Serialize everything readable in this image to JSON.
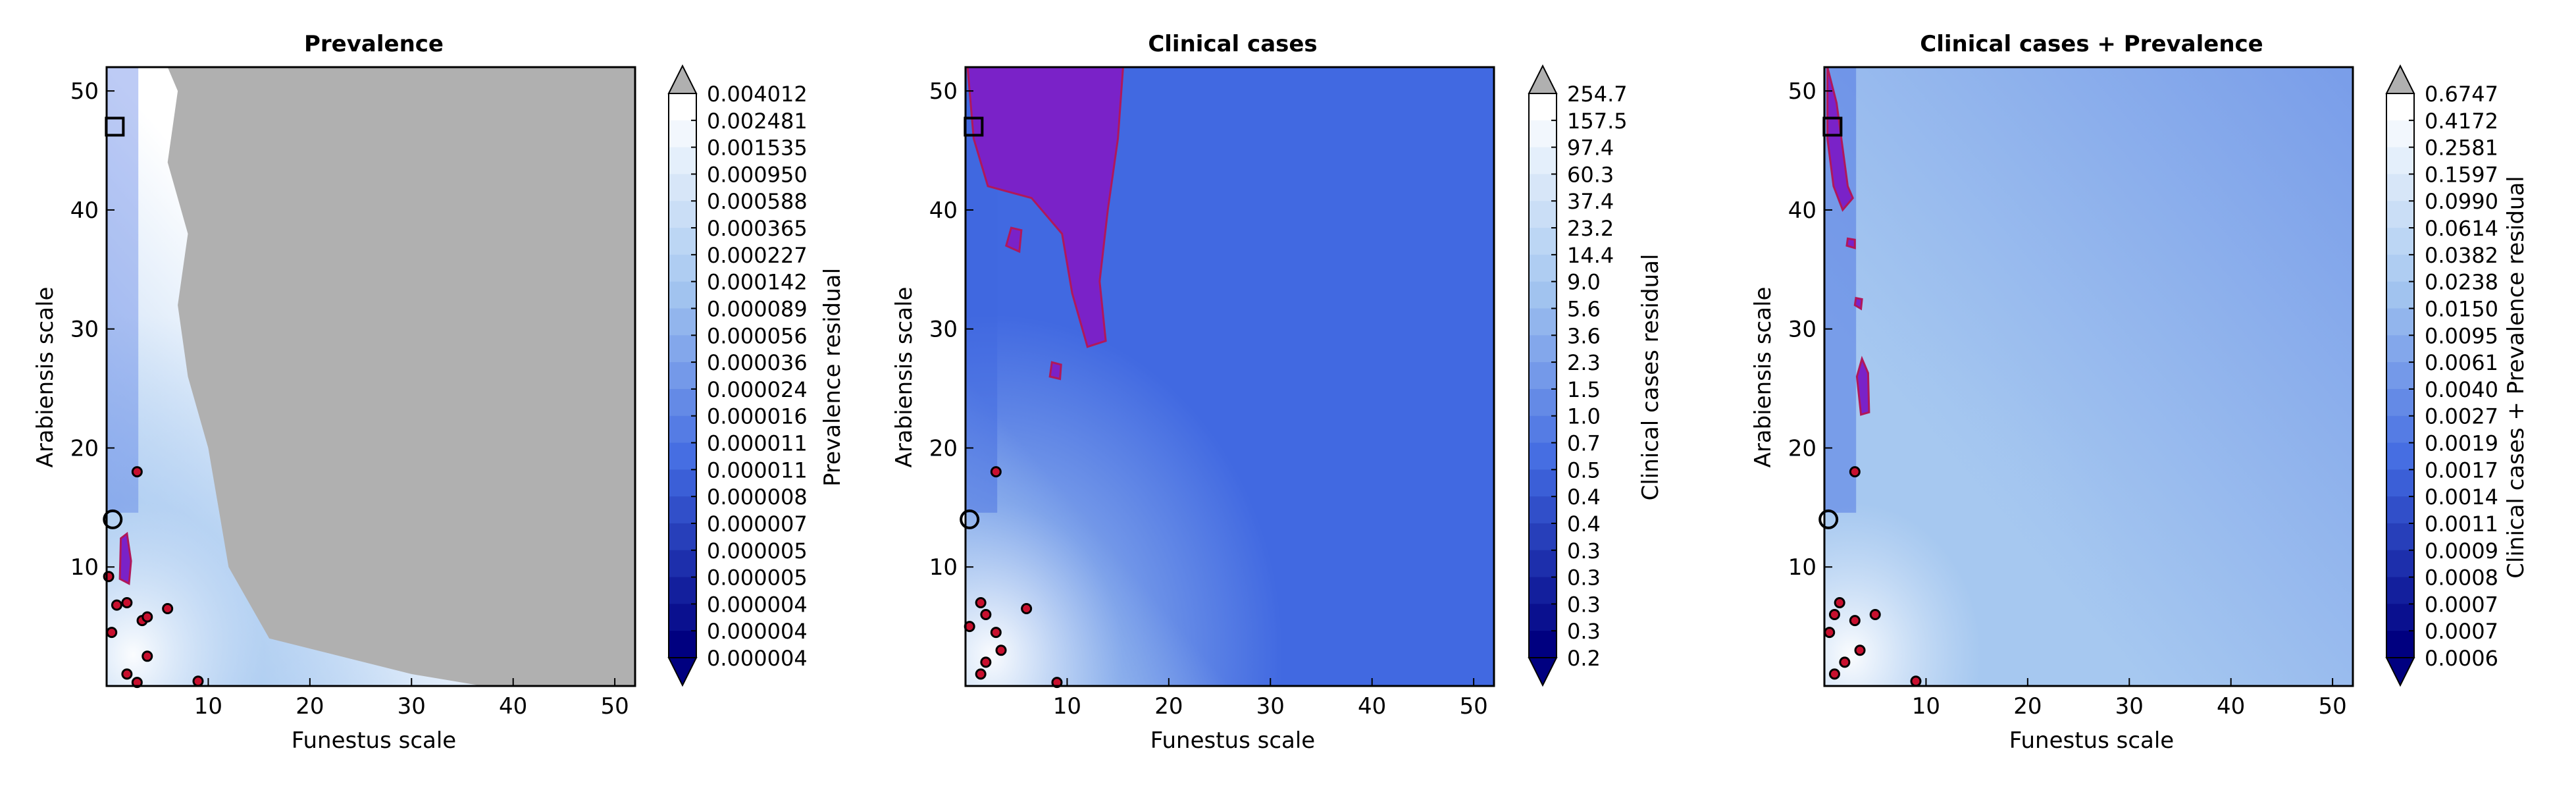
{
  "colors": {
    "contour_dark": "#000080",
    "contour_mid": "#4169e1",
    "contour_light": "#a6c8f0",
    "contour_white": "#ffffff",
    "over_gray": "#b0b0b0",
    "highlight_purple": "#7a22c8",
    "highlight_edge": "#b0185a",
    "marker_red": "#c8102e"
  },
  "chart_data": [
    {
      "type": "heatmap",
      "title": "Prevalence",
      "xlabel": "Funestus scale",
      "ylabel": "Arabiensis scale",
      "xlim": [
        0,
        52
      ],
      "ylim": [
        0,
        52
      ],
      "xticks": [
        "10",
        "20",
        "30",
        "40",
        "50"
      ],
      "yticks": [
        "10",
        "20",
        "30",
        "40",
        "50"
      ],
      "grid": false,
      "colorbar": {
        "label": "Prevalence residual",
        "extend": "both",
        "ticks": [
          "0.000004",
          "0.000004",
          "0.000004",
          "0.000005",
          "0.000005",
          "0.000007",
          "0.000008",
          "0.000011",
          "0.000011",
          "0.000016",
          "0.000024",
          "0.000036",
          "0.000056",
          "0.000089",
          "0.000142",
          "0.000227",
          "0.000365",
          "0.000588",
          "0.000950",
          "0.001535",
          "0.002481",
          "0.004012"
        ]
      },
      "gray_region_boundary": [
        [
          52,
          0
        ],
        [
          37,
          0
        ],
        [
          30,
          1
        ],
        [
          16,
          4
        ],
        [
          12,
          10
        ],
        [
          11,
          15
        ],
        [
          10,
          20
        ],
        [
          8,
          26
        ],
        [
          7,
          32
        ],
        [
          8,
          38
        ],
        [
          6,
          44
        ],
        [
          7,
          50
        ],
        [
          6,
          52
        ],
        [
          52,
          52
        ]
      ],
      "highlight_regions": [
        [
          [
            1.3,
            9
          ],
          [
            2.2,
            8.6
          ],
          [
            2.4,
            10.5
          ],
          [
            2.0,
            12.8
          ],
          [
            1.4,
            12.4
          ]
        ]
      ],
      "square_marker": [
        0.8,
        47
      ],
      "circle_marker": [
        0.6,
        14
      ],
      "red_points": [
        [
          3,
          18
        ],
        [
          2,
          7
        ],
        [
          1,
          6.8
        ],
        [
          3.5,
          5.5
        ],
        [
          4,
          5.8
        ],
        [
          6,
          6.5
        ],
        [
          4,
          2.5
        ],
        [
          2,
          1
        ],
        [
          3,
          0.3
        ],
        [
          9,
          0.4
        ],
        [
          0.5,
          4.5
        ],
        [
          0.2,
          9.2
        ]
      ]
    },
    {
      "type": "heatmap",
      "title": "Clinical cases",
      "xlabel": "Funestus scale",
      "ylabel": "Arabiensis scale",
      "xlim": [
        0,
        52
      ],
      "ylim": [
        0,
        52
      ],
      "xticks": [
        "10",
        "20",
        "30",
        "40",
        "50"
      ],
      "yticks": [
        "10",
        "20",
        "30",
        "40",
        "50"
      ],
      "grid": false,
      "colorbar": {
        "label": "Clinical cases residual",
        "extend": "both",
        "ticks": [
          "0.2",
          "0.3",
          "0.3",
          "0.3",
          "0.3",
          "0.4",
          "0.4",
          "0.5",
          "0.7",
          "1.0",
          "1.5",
          "2.3",
          "3.6",
          "5.6",
          "9.0",
          "14.4",
          "23.2",
          "37.4",
          "60.3",
          "97.4",
          "157.5",
          "254.7"
        ]
      },
      "highlight_regions": [
        [
          [
            0.2,
            52
          ],
          [
            15.5,
            52
          ],
          [
            15,
            46
          ],
          [
            14,
            40
          ],
          [
            13.2,
            34
          ],
          [
            13.8,
            29
          ],
          [
            12,
            28.5
          ],
          [
            10.5,
            33
          ],
          [
            9.5,
            38
          ],
          [
            6.5,
            41
          ],
          [
            2.2,
            42
          ],
          [
            0.8,
            46
          ]
        ],
        [
          [
            8.3,
            26
          ],
          [
            9.3,
            25.8
          ],
          [
            9.4,
            27
          ],
          [
            8.5,
            27.2
          ]
        ],
        [
          [
            4,
            37
          ],
          [
            5.3,
            36.5
          ],
          [
            5.5,
            38.3
          ],
          [
            4.5,
            38.5
          ]
        ]
      ],
      "square_marker": [
        0.8,
        47
      ],
      "circle_marker": [
        0.4,
        14
      ],
      "red_points": [
        [
          3,
          18
        ],
        [
          1.5,
          7
        ],
        [
          2,
          6
        ],
        [
          6,
          6.5
        ],
        [
          3,
          4.5
        ],
        [
          2,
          2
        ],
        [
          1.5,
          1
        ],
        [
          3.5,
          3
        ],
        [
          9,
          0.3
        ],
        [
          0.4,
          5
        ]
      ]
    },
    {
      "type": "heatmap",
      "title": "Clinical cases + Prevalence",
      "xlabel": "Funestus scale",
      "ylabel": "Arabiensis scale",
      "xlim": [
        0,
        52
      ],
      "ylim": [
        0,
        52
      ],
      "xticks": [
        "10",
        "20",
        "30",
        "40",
        "50"
      ],
      "yticks": [
        "10",
        "20",
        "30",
        "40",
        "50"
      ],
      "grid": false,
      "colorbar": {
        "label": "Clinical cases + Prevalence residual",
        "extend": "both",
        "ticks": [
          "0.0006",
          "0.0007",
          "0.0007",
          "0.0008",
          "0.0009",
          "0.0011",
          "0.0014",
          "0.0017",
          "0.0019",
          "0.0027",
          "0.0040",
          "0.0061",
          "0.0095",
          "0.0150",
          "0.0238",
          "0.0382",
          "0.0614",
          "0.0990",
          "0.1597",
          "0.2581",
          "0.4172",
          "0.6747"
        ]
      },
      "highlight_regions": [
        [
          [
            0.3,
            52
          ],
          [
            1.2,
            49
          ],
          [
            2.3,
            42
          ],
          [
            2.8,
            41
          ],
          [
            1.8,
            40
          ],
          [
            0.9,
            42
          ],
          [
            0.3,
            46
          ]
        ],
        [
          [
            3.6,
            22.8
          ],
          [
            4.4,
            23
          ],
          [
            4.3,
            26.3
          ],
          [
            3.7,
            27.5
          ],
          [
            3.2,
            26
          ]
        ],
        [
          [
            2.2,
            37
          ],
          [
            3,
            36.8
          ],
          [
            3,
            37.5
          ],
          [
            2.3,
            37.6
          ]
        ],
        [
          [
            3,
            32
          ],
          [
            3.6,
            31.7
          ],
          [
            3.7,
            32.5
          ],
          [
            3.1,
            32.6
          ]
        ]
      ],
      "square_marker": [
        0.8,
        47
      ],
      "circle_marker": [
        0.4,
        14
      ],
      "red_points": [
        [
          3,
          18
        ],
        [
          1.5,
          7
        ],
        [
          1,
          6
        ],
        [
          3,
          5.5
        ],
        [
          5,
          6
        ],
        [
          3.5,
          3
        ],
        [
          2,
          2
        ],
        [
          1,
          1
        ],
        [
          9,
          0.4
        ],
        [
          0.5,
          4.5
        ]
      ]
    }
  ]
}
